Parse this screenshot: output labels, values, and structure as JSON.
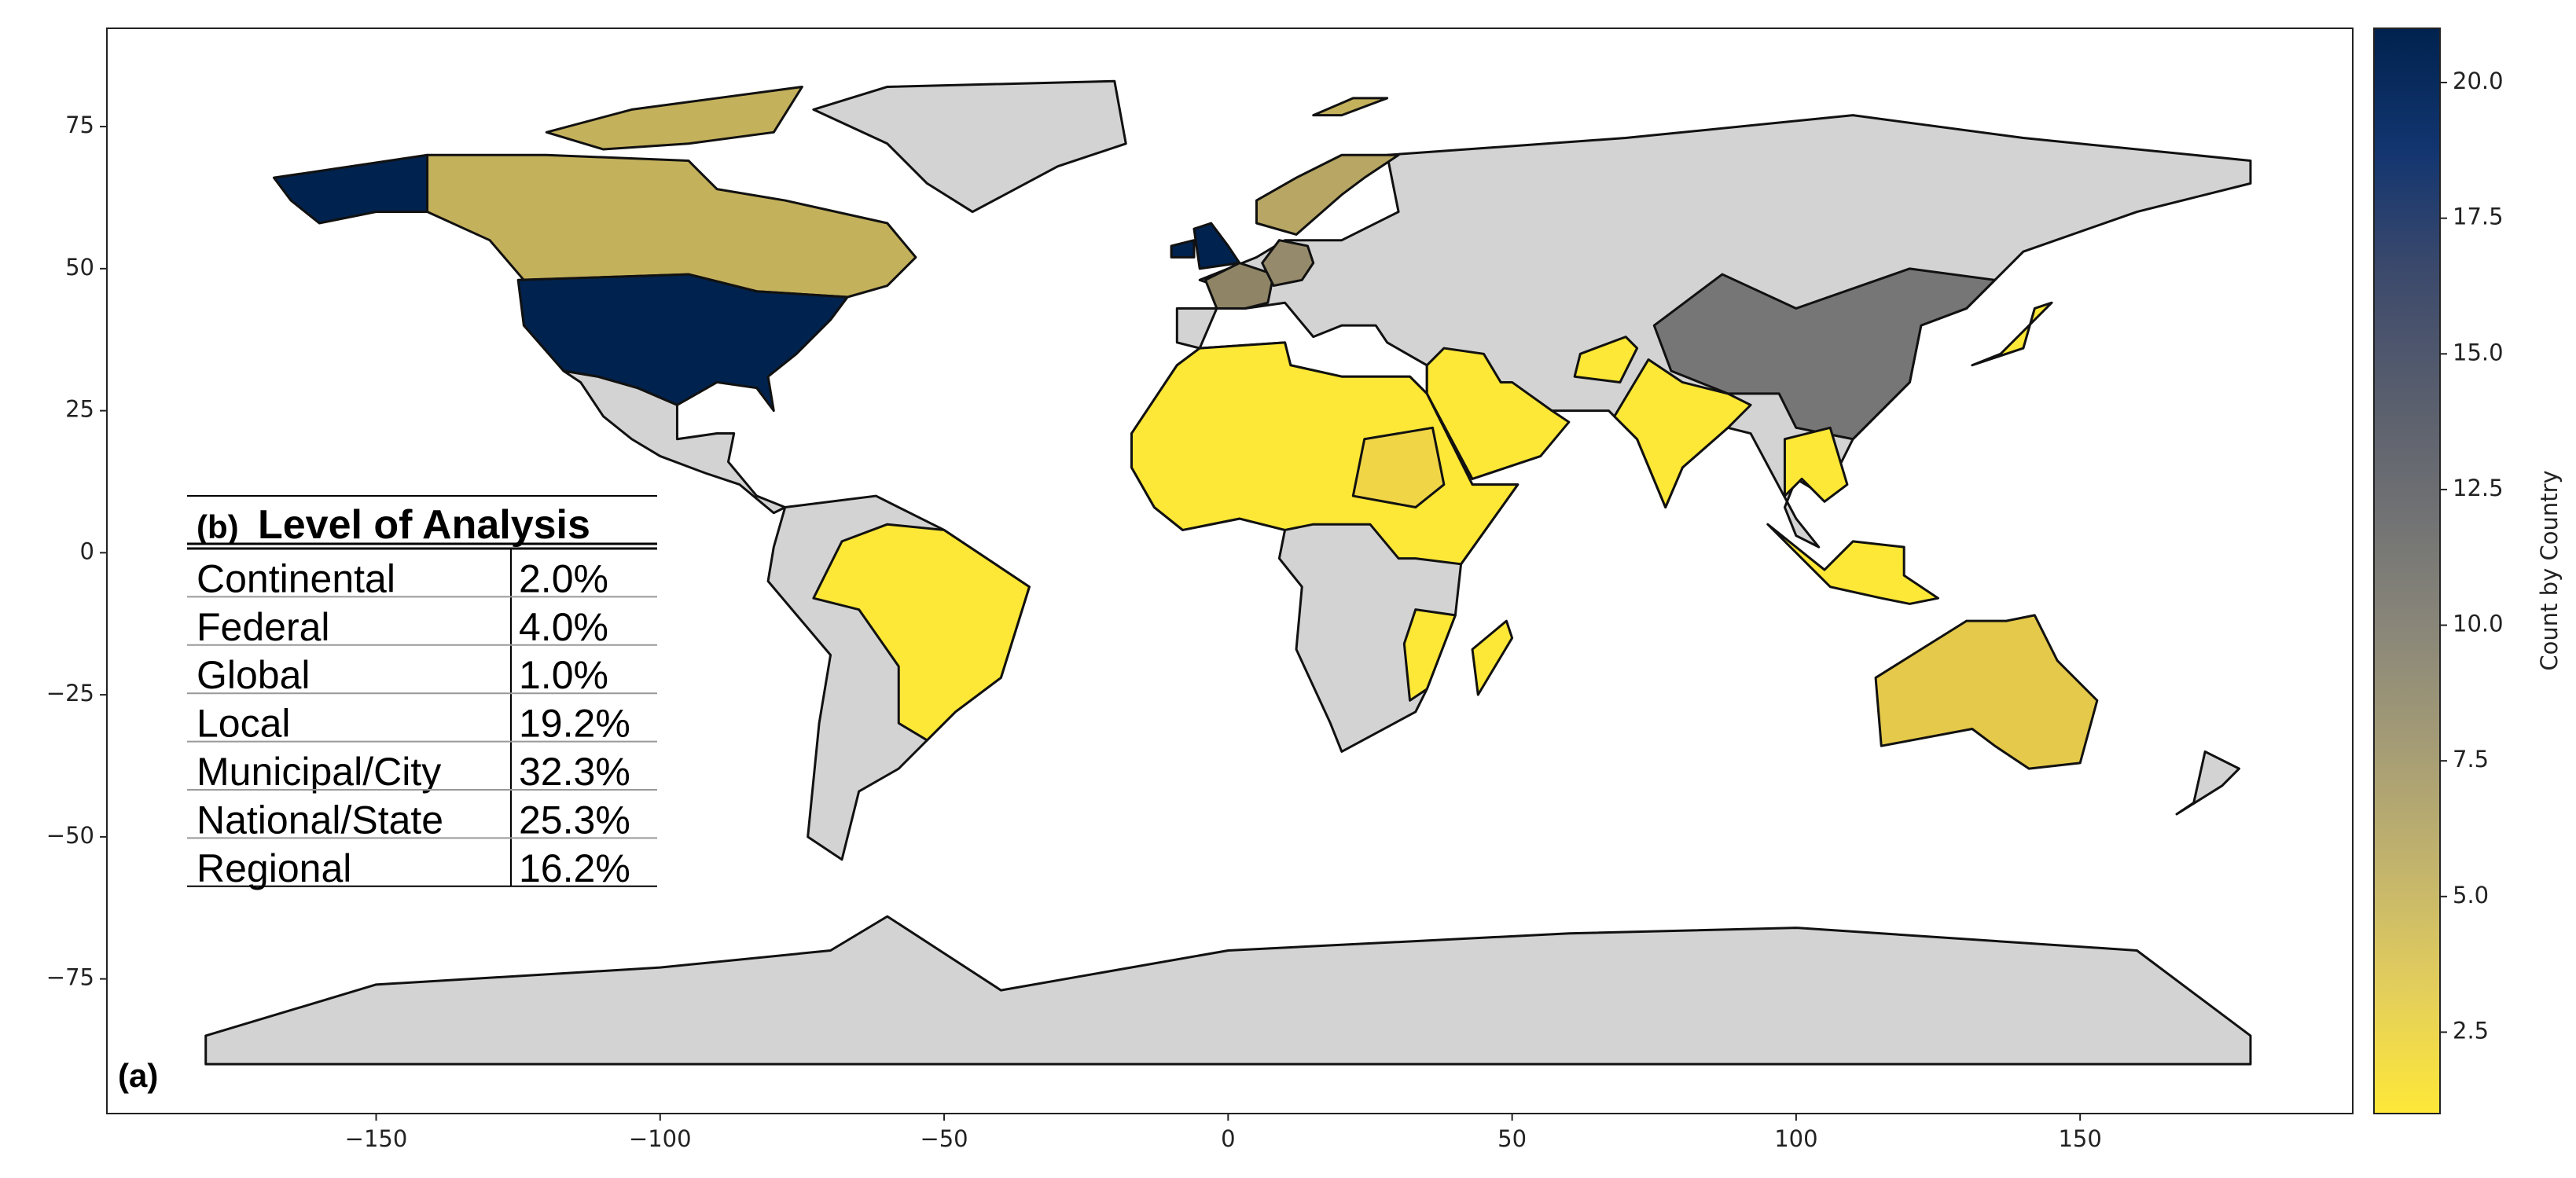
{
  "chart_data": {
    "type": "choropleth",
    "xlim": [
      -197.4,
      198
    ],
    "ylim": [
      -98.7,
      92.3
    ],
    "xticks": [
      {
        "value": -150,
        "label": "−150"
      },
      {
        "value": -100,
        "label": "−100"
      },
      {
        "value": -50,
        "label": "−50"
      },
      0,
      50,
      100,
      150
    ],
    "yticks": [
      {
        "value": -75,
        "label": "−75"
      },
      {
        "value": -50,
        "label": "−50"
      },
      {
        "value": -25,
        "label": "−25"
      },
      0,
      25,
      50,
      75
    ],
    "colormap": "cividis_r",
    "colorbar": {
      "label": "Count by Country",
      "clim": [
        1,
        21
      ],
      "ticks": [
        2.5,
        {
          "value": 5,
          "label": "5.0"
        },
        7.5,
        {
          "value": 10,
          "label": "10.0"
        },
        12.5,
        {
          "value": 15,
          "label": "15.0"
        },
        17.5,
        {
          "value": 20,
          "label": "20.0"
        }
      ]
    },
    "panel_label": "(a)",
    "table": {
      "panel_label": "(b)",
      "title": "Level of Analysis",
      "rows": [
        [
          "Continental",
          "2.0%"
        ],
        [
          "Federal",
          "4.0%"
        ],
        [
          "Global",
          "1.0%"
        ],
        [
          "Local",
          "19.2%"
        ],
        [
          "Municipal/City",
          "32.3%"
        ],
        [
          "National/State",
          "25.3%"
        ],
        [
          "Regional",
          "16.2%"
        ]
      ]
    }
  }
}
